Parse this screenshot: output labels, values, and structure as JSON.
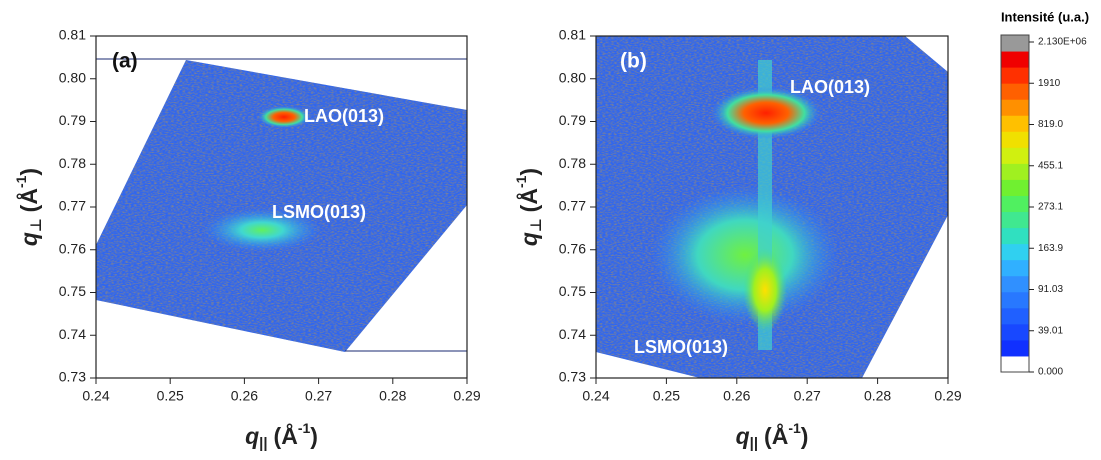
{
  "chart_data": [
    {
      "type": "heatmap",
      "panel_label": "(a)",
      "xlabel": [
        "q",
        "||",
        "(Å",
        "-1",
        ")"
      ],
      "ylabel": [
        "q",
        "⊥",
        "(Å",
        "-1",
        ")"
      ],
      "xlim": [
        0.24,
        0.29
      ],
      "xticks": [
        0.24,
        0.25,
        0.26,
        0.27,
        0.28,
        0.29
      ],
      "ylim": [
        0.73,
        0.81
      ],
      "yticks": [
        0.73,
        0.74,
        0.75,
        0.76,
        0.77,
        0.78,
        0.79,
        {
          "value": 0.8,
          "label": "0.80"
        },
        0.81
      ],
      "annotations": [
        "LAO(013)",
        "LSMO(013)"
      ]
    },
    {
      "type": "heatmap",
      "panel_label": "(b)",
      "xlabel": [
        "q",
        "||",
        "(Å",
        "-1",
        ")"
      ],
      "ylabel": [
        "q",
        "⊥",
        "(Å",
        "-1",
        ")"
      ],
      "xlim": [
        0.24,
        0.29
      ],
      "xticks": [
        0.24,
        0.25,
        0.26,
        0.27,
        0.28,
        0.29
      ],
      "ylim": [
        0.73,
        0.81
      ],
      "yticks": [
        0.73,
        0.74,
        0.75,
        0.76,
        0.77,
        0.78,
        0.79,
        {
          "value": 0.8,
          "label": "0.80"
        },
        0.81
      ],
      "annotations": [
        "LAO(013)",
        "LSMO(013)"
      ],
      "colorbar": {
        "title": "Intensité (u.a.)",
        "ticks": [
          {
            "value": 0,
            "label": "0.000"
          },
          39.01,
          91.03,
          163.9,
          273.1,
          455.1,
          {
            "value": 819,
            "label": "819.0"
          },
          1910,
          {
            "value": 2130000,
            "label": "2.130E+06"
          }
        ],
        "colors": [
          "#ffffff",
          "#1030ff",
          "#1848ff",
          "#2060ff",
          "#2878ff",
          "#3090ff",
          "#30b0ff",
          "#30d0f0",
          "#30e0c0",
          "#40e890",
          "#50f060",
          "#70f030",
          "#a0f020",
          "#d0f010",
          "#f0e000",
          "#ffc000",
          "#ff9000",
          "#ff6000",
          "#ff3000",
          "#f00000",
          "#999999"
        ]
      }
    }
  ]
}
